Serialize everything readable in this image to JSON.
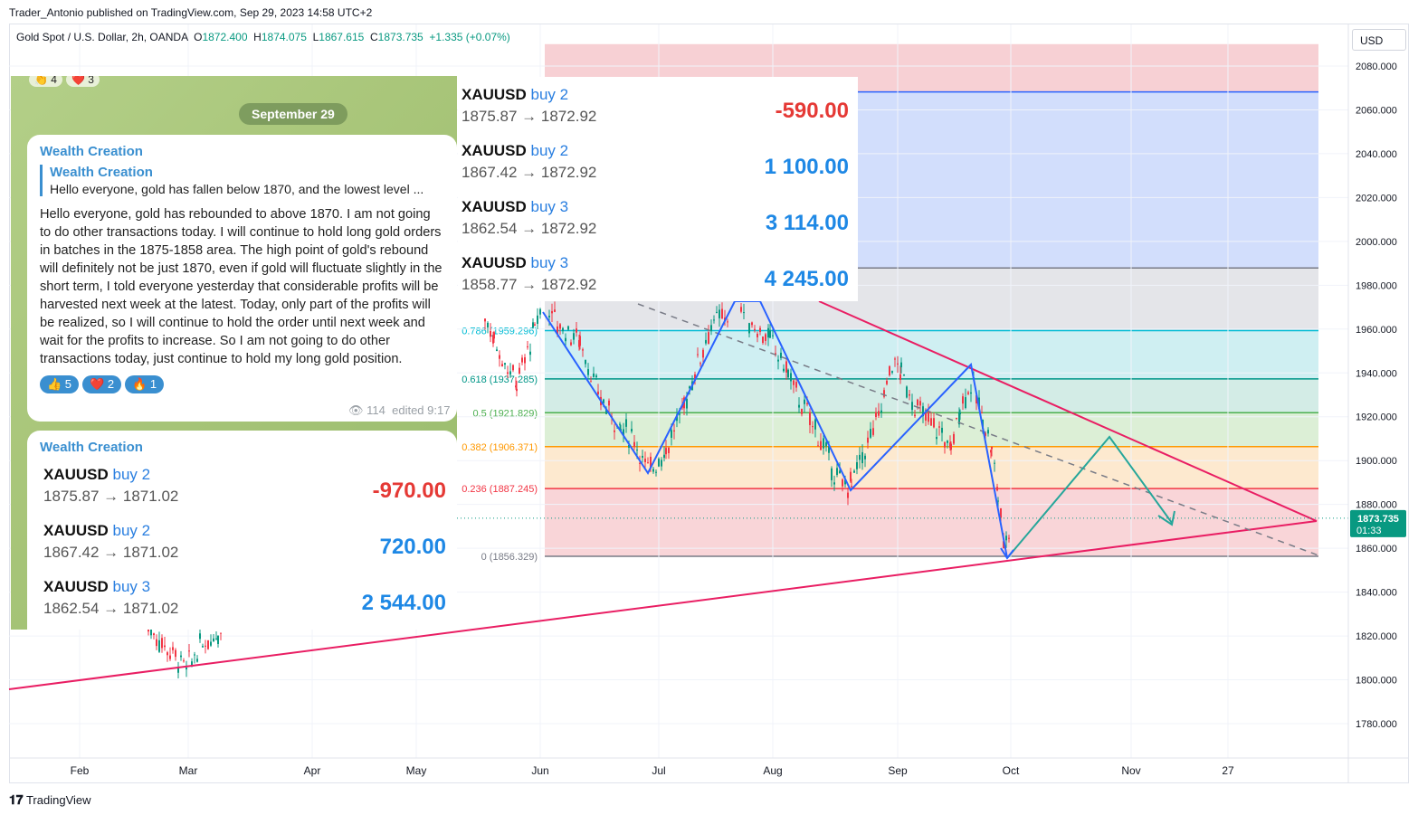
{
  "publisher": "Trader_Antonio published on TradingView.com, Sep 29, 2023 14:58 UTC+2",
  "symbol": {
    "name": "Gold Spot / U.S. Dollar, 2h, OANDA",
    "o_label": "O",
    "o": "1872.400",
    "h_label": "H",
    "h": "1874.075",
    "l_label": "L",
    "l": "1867.615",
    "c_label": "C",
    "c": "1873.735",
    "change": "+1.335 (+0.07%)"
  },
  "currency": "USD",
  "price_tag": {
    "price": "1873.735",
    "countdown": "01:33"
  },
  "brand": "TradingView",
  "colors": {
    "up": "#089981",
    "down": "#f23645",
    "blue_wave": "#2962ff",
    "green_path": "#26a69a",
    "trendline": "#e91e63"
  },
  "chart_data": {
    "type": "candlestick",
    "ylim": [
      1775,
      2090
    ],
    "y_ticks": [
      "2080.000",
      "2060.000",
      "2040.000",
      "2020.000",
      "2000.000",
      "1980.000",
      "1960.000",
      "1940.000",
      "1920.000",
      "1900.000",
      "1880.000",
      "1860.000",
      "1840.000",
      "1820.000",
      "1800.000",
      "1780.000"
    ],
    "x_ticks": [
      "Feb",
      "Mar",
      "Apr",
      "May",
      "Jun",
      "Jul",
      "Aug",
      "Sep",
      "Oct",
      "Nov",
      "27"
    ],
    "fib_levels": [
      {
        "label": "0.786 (1959.296)",
        "value": 1959.296,
        "color": "#00bcd4"
      },
      {
        "label": "0.618 (1937.285)",
        "value": 1937.285,
        "color": "#009688"
      },
      {
        "label": "0.5 (1921.829)",
        "value": 1921.829,
        "color": "#4caf50"
      },
      {
        "label": "0.382 (1906.371)",
        "value": 1906.371,
        "color": "#ff9800"
      },
      {
        "label": "0.236 (1887.245)",
        "value": 1887.245,
        "color": "#f23645"
      },
      {
        "label": "0 (1856.329)",
        "value": 1856.329,
        "color": "#787b86"
      }
    ],
    "zone_lines": [
      2068.2,
      1987.9
    ],
    "last_price": 1873.735
  },
  "trades_card": [
    {
      "symbol": "XAUUSD",
      "action": "buy 2",
      "prices": "1875.87 → 1872.92",
      "pnl": "-590.00",
      "color": "#e53935"
    },
    {
      "symbol": "XAUUSD",
      "action": "buy 2",
      "prices": "1867.42 → 1872.92",
      "pnl": "1 100.00",
      "color": "#1e88e5"
    },
    {
      "symbol": "XAUUSD",
      "action": "buy 3",
      "prices": "1862.54 → 1872.92",
      "pnl": "3 114.00",
      "color": "#1e88e5"
    },
    {
      "symbol": "XAUUSD",
      "action": "buy 3",
      "prices": "1858.77 → 1872.92",
      "pnl": "4 245.00",
      "color": "#1e88e5"
    }
  ],
  "telegram": {
    "top_reactions": [
      "👏 4",
      "❤️ 3"
    ],
    "date": "September 29",
    "msg1": {
      "author": "Wealth Creation",
      "quote_author": "Wealth Creation",
      "quote_text": "Hello everyone, gold has fallen below 1870, and the lowest level ...",
      "body": "Hello everyone, gold has rebounded to above 1870. I am not going to do other transactions today. I will continue to hold long gold orders in batches in the 1875-1858 area. The high point of gold's rebound will definitely not be just 1870, even if gold will fluctuate slightly in the short term, I told everyone yesterday that considerable profits will be harvested next week at the latest. Today, only part of the profits will be realized, so I will continue to hold the order until next week and wait for the profits to increase. So I am not going to do other transactions today, just continue to hold my long gold position.",
      "reactions": [
        "👍 5",
        "❤️ 2",
        "🔥 1"
      ],
      "views": "114",
      "edited": "edited 9:17"
    },
    "msg2": {
      "author": "Wealth Creation",
      "trades": [
        {
          "symbol": "XAUUSD",
          "action": "buy 2",
          "prices": "1875.87 → 1871.02",
          "pnl": "-970.00",
          "color": "#e53935"
        },
        {
          "symbol": "XAUUSD",
          "action": "buy 2",
          "prices": "1867.42 → 1871.02",
          "pnl": "720.00",
          "color": "#1e88e5"
        },
        {
          "symbol": "XAUUSD",
          "action": "buy 3",
          "prices": "1862.54 → 1871.02",
          "pnl": "2 544.00",
          "color": "#1e88e5"
        }
      ]
    }
  }
}
